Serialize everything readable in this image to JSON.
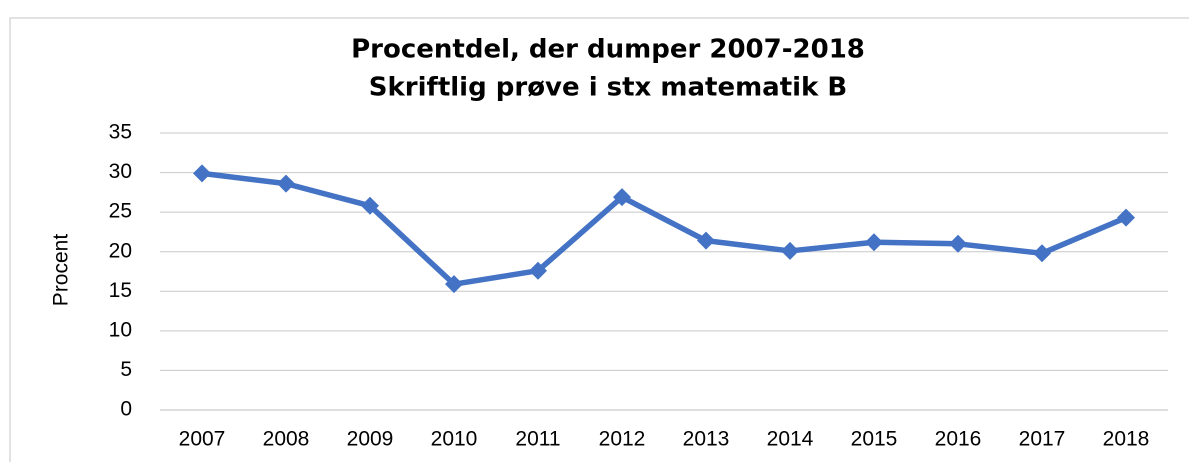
{
  "chart_data": {
    "type": "line",
    "title": [
      "Procentdel, der dumper 2007-2018",
      "Skriftlig prøve i stx matematik B"
    ],
    "y_label": "Procent",
    "categories": [
      "2007",
      "2008",
      "2009",
      "2010",
      "2011",
      "2012",
      "2013",
      "2014",
      "2015",
      "2016",
      "2017",
      "2018"
    ],
    "series": [
      {
        "name": "Procent",
        "color": "#4472c4",
        "values": [
          29.9,
          28.6,
          25.8,
          15.9,
          17.6,
          26.9,
          21.4,
          20.1,
          21.2,
          21.0,
          19.8,
          24.3
        ]
      }
    ],
    "ylim": [
      0,
      35
    ],
    "yticks": [
      0,
      5,
      10,
      15,
      20,
      25,
      30,
      35
    ],
    "grid": true
  }
}
